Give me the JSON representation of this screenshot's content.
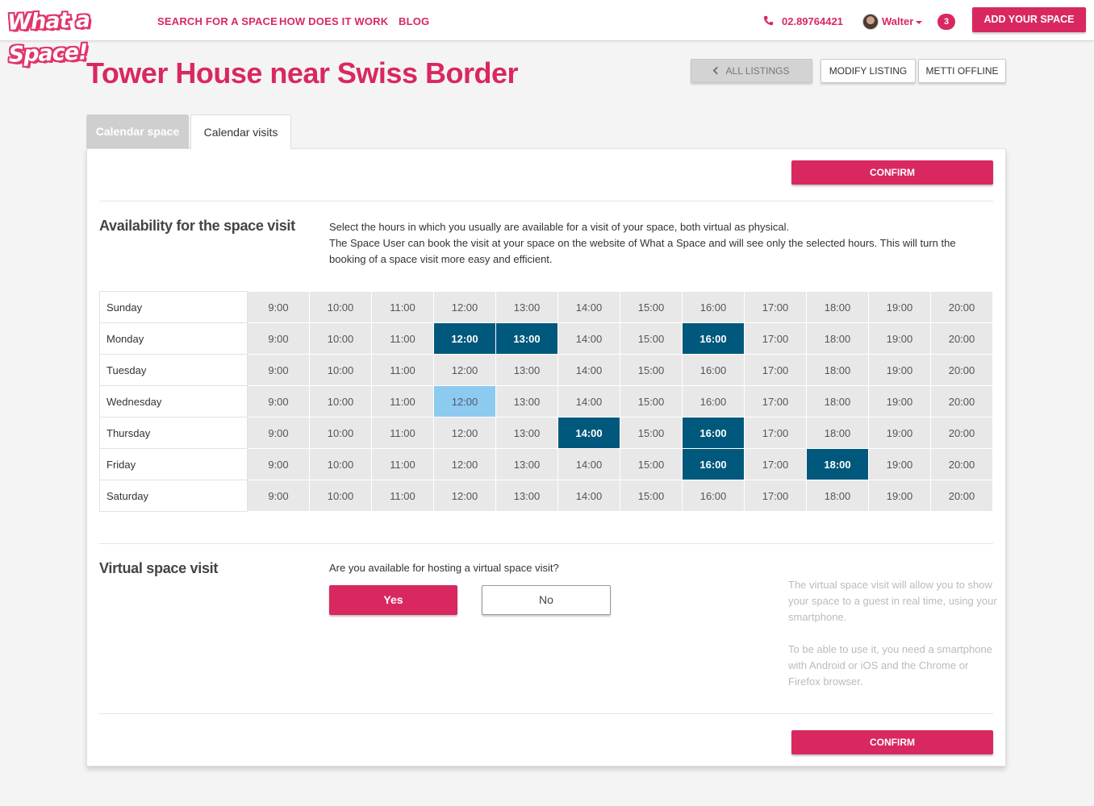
{
  "header": {
    "logo_text": "What a Space!",
    "nav": [
      "SEARCH FOR A SPACE",
      "HOW DOES IT WORK",
      "BLOG"
    ],
    "phone": "02.89764421",
    "user_name": "Walter",
    "notifications": "3",
    "add_space": "ADD YOUR SPACE"
  },
  "page": {
    "title": "Tower House near Swiss Border",
    "all_listings": "ALL LISTINGS",
    "modify_listing": "MODIFY LISTING",
    "metti_offline": "METTI OFFLINE"
  },
  "tabs": [
    "Calendar space",
    "Calendar visits"
  ],
  "confirm_label": "CONFIRM",
  "availability": {
    "title": "Availability for the space visit",
    "description_1": "Select the hours in which you usually are available for a visit of your space, both virtual as physical.",
    "description_2": "The Space User can book the visit at your space on the website of What a Space and will see only the selected hours. This will turn the booking of a space visit more easy and efficient.",
    "hours": [
      "9:00",
      "10:00",
      "11:00",
      "12:00",
      "13:00",
      "14:00",
      "15:00",
      "16:00",
      "17:00",
      "18:00",
      "19:00",
      "20:00"
    ],
    "days": [
      {
        "name": "Sunday",
        "selected": [],
        "hover": []
      },
      {
        "name": "Monday",
        "selected": [
          "12:00",
          "13:00",
          "16:00"
        ],
        "hover": []
      },
      {
        "name": "Tuesday",
        "selected": [],
        "hover": []
      },
      {
        "name": "Wednesday",
        "selected": [],
        "hover": [
          "12:00"
        ]
      },
      {
        "name": "Thursday",
        "selected": [
          "14:00",
          "16:00"
        ],
        "hover": []
      },
      {
        "name": "Friday",
        "selected": [
          "16:00",
          "18:00"
        ],
        "hover": []
      },
      {
        "name": "Saturday",
        "selected": [],
        "hover": []
      }
    ],
    "colors": {
      "selected": "#00587c",
      "hover": "#8ccaf0",
      "default": "#e8e8e8"
    }
  },
  "virtual": {
    "title": "Virtual space visit",
    "question": "Are you available for hosting a virtual space visit?",
    "yes": "Yes",
    "no": "No",
    "note_1": "The virtual space visit will allow you to show your space to a guest in real time, using your smartphone.",
    "note_2": "To be able to use it, you need a smartphone with Android or iOS and the Chrome or Firefox browser."
  },
  "colors": {
    "brand": "#d9285f"
  },
  "icons": {
    "phone": "phone-icon",
    "back": "chevron-left-icon",
    "caret": "caret-down-icon"
  }
}
